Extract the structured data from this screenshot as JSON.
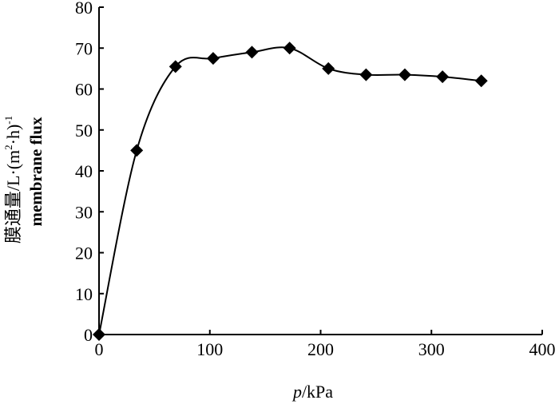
{
  "chart_data": {
    "type": "line",
    "title": "",
    "xlabel_italic": "p",
    "xlabel_unit": "/kPa",
    "ylabel_line1_cn": "膜通量/L·(m",
    "ylabel_line1_sup2": "2",
    "ylabel_line1_mid": "·h)",
    "ylabel_line1_supneg": "-1",
    "ylabel_line2": "membrane flux",
    "xlim": [
      0,
      400
    ],
    "ylim": [
      0,
      80
    ],
    "xticks": [
      "0",
      "100",
      "200",
      "300",
      "400"
    ],
    "yticks": [
      "0",
      "10",
      "20",
      "30",
      "40",
      "50",
      "60",
      "70",
      "80"
    ],
    "series": [
      {
        "x": [
          0,
          34,
          69,
          103,
          138,
          172,
          207,
          241,
          276,
          310,
          345
        ],
        "y": [
          0,
          45,
          65.5,
          67.5,
          69,
          70,
          65,
          63.5,
          63.5,
          63,
          62
        ]
      }
    ],
    "marker": "diamond",
    "line_style": "smooth",
    "color": "#000000"
  }
}
